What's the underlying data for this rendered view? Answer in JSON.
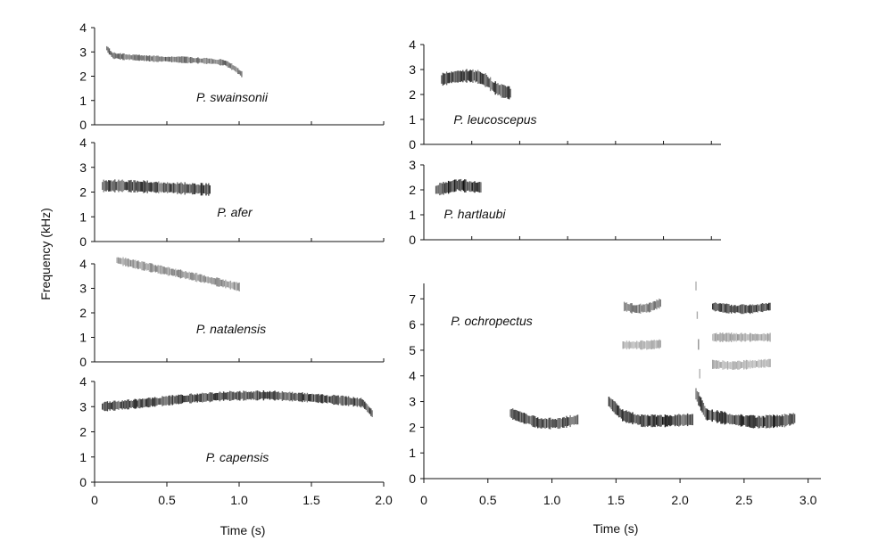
{
  "figure": {
    "ylabel": "Frequency (kHz)",
    "xlabel_left": "Time (s)",
    "xlabel_right": "Time (s)"
  },
  "chart_data": [
    {
      "type": "heatmap",
      "panel": "left-1",
      "species": "P. swainsonii",
      "xlim": [
        0,
        2.0
      ],
      "ylim": [
        0,
        4
      ],
      "yticks": [
        0,
        1,
        2,
        3,
        4
      ],
      "ytick_labels": [
        "0",
        "1",
        "2",
        "3",
        "4"
      ],
      "contour": {
        "x": [
          0.08,
          0.12,
          0.2,
          0.4,
          0.6,
          0.8,
          0.9,
          0.97,
          1.02
        ],
        "y": [
          3.15,
          2.85,
          2.8,
          2.72,
          2.68,
          2.62,
          2.55,
          2.3,
          2.05
        ],
        "band": 0.22,
        "intensity": 0.65
      }
    },
    {
      "type": "heatmap",
      "panel": "left-2",
      "species": "P. afer",
      "xlim": [
        0,
        2.0
      ],
      "ylim": [
        0,
        4
      ],
      "yticks": [
        0,
        1,
        2,
        3,
        4
      ],
      "ytick_labels": [
        "0",
        "1",
        "2",
        "3",
        "4"
      ],
      "contour": {
        "x": [
          0.05,
          0.2,
          0.4,
          0.6,
          0.8
        ],
        "y": [
          2.25,
          2.25,
          2.2,
          2.15,
          2.1
        ],
        "band": 0.42,
        "intensity": 0.85
      }
    },
    {
      "type": "heatmap",
      "panel": "left-3",
      "species": "P. natalensis",
      "xlim": [
        0,
        2.0
      ],
      "ylim": [
        0,
        4
      ],
      "yticks": [
        0,
        1,
        2,
        3,
        4
      ],
      "ytick_labels": [
        "0",
        "1",
        "2",
        "3",
        "4"
      ],
      "contour": {
        "x": [
          0.15,
          0.3,
          0.5,
          0.7,
          0.85,
          1.0
        ],
        "y": [
          4.15,
          3.95,
          3.7,
          3.45,
          3.25,
          3.05
        ],
        "band": 0.3,
        "intensity": 0.5
      }
    },
    {
      "type": "heatmap",
      "panel": "left-4",
      "species": "P. capensis",
      "xlim": [
        0,
        2.0
      ],
      "ylim": [
        0,
        4
      ],
      "xticks": [
        0,
        0.5,
        1.0,
        1.5,
        2.0
      ],
      "xtick_labels": [
        "0",
        "0.5",
        "1.0",
        "1.5",
        "2.0"
      ],
      "yticks": [
        0,
        1,
        2,
        3,
        4
      ],
      "ytick_labels": [
        "0",
        "1",
        "2",
        "3",
        "4"
      ],
      "contour": {
        "x": [
          0.05,
          0.3,
          0.6,
          0.9,
          1.2,
          1.5,
          1.75,
          1.85,
          1.92
        ],
        "y": [
          3.0,
          3.12,
          3.3,
          3.42,
          3.45,
          3.35,
          3.22,
          3.15,
          2.7
        ],
        "band": 0.32,
        "intensity": 0.85
      }
    },
    {
      "type": "heatmap",
      "panel": "right-1",
      "species": "P. leucoscepus",
      "xlim": [
        0,
        3.1
      ],
      "ylim": [
        0,
        4
      ],
      "yticks": [
        0,
        1,
        2,
        3,
        4
      ],
      "ytick_labels": [
        "0",
        "1",
        "2",
        "3",
        "4"
      ],
      "contour": {
        "x": [
          0.18,
          0.3,
          0.45,
          0.55,
          0.65,
          0.72,
          0.8,
          0.9
        ],
        "y": [
          2.6,
          2.7,
          2.75,
          2.72,
          2.55,
          2.3,
          2.15,
          2.05
        ],
        "band": 0.45,
        "intensity": 0.85
      }
    },
    {
      "type": "heatmap",
      "panel": "right-2",
      "species": "P. hartlaubi",
      "xlim": [
        0,
        3.1
      ],
      "ylim": [
        0,
        3
      ],
      "yticks": [
        0,
        1,
        2,
        3
      ],
      "ytick_labels": [
        "0",
        "1",
        "2",
        "3"
      ],
      "contour": {
        "x": [
          0.12,
          0.25,
          0.35,
          0.5,
          0.6
        ],
        "y": [
          2.0,
          2.1,
          2.2,
          2.12,
          2.1
        ],
        "band": 0.42,
        "intensity": 0.95
      }
    },
    {
      "type": "heatmap",
      "panel": "right-3",
      "species": "P. ochropectus",
      "xlim": [
        0,
        3.1
      ],
      "ylim": [
        0,
        7.6
      ],
      "xticks": [
        0,
        0.5,
        1.0,
        1.5,
        2.0,
        2.5,
        3.0
      ],
      "xtick_labels": [
        "0",
        "0.5",
        "1.0",
        "1.5",
        "2.0",
        "2.5",
        "3.0"
      ],
      "yticks": [
        0,
        1,
        2,
        3,
        4,
        5,
        6,
        7
      ],
      "ytick_labels": [
        "0",
        "1",
        "2",
        "3",
        "4",
        "5",
        "6",
        "7"
      ],
      "segments": [
        {
          "x": [
            0.67,
            0.75,
            0.9,
            1.05,
            1.2
          ],
          "y": [
            2.55,
            2.4,
            2.15,
            2.15,
            2.3
          ],
          "band": 0.38,
          "intensity": 0.8
        },
        {
          "x": [
            1.44,
            1.55,
            1.7,
            1.9,
            2.1
          ],
          "y": [
            3.0,
            2.45,
            2.25,
            2.25,
            2.3
          ],
          "band": 0.4,
          "intensity": 0.9
        },
        {
          "x": [
            2.12,
            2.2,
            2.4,
            2.6,
            2.8,
            2.9
          ],
          "y": [
            3.3,
            2.5,
            2.3,
            2.2,
            2.25,
            2.35
          ],
          "band": 0.42,
          "intensity": 0.9
        },
        {
          "x": [
            1.56,
            1.65,
            1.75,
            1.85
          ],
          "y": [
            6.7,
            6.6,
            6.65,
            6.85
          ],
          "band": 0.32,
          "intensity": 0.6
        },
        {
          "x": [
            2.25,
            2.4,
            2.55,
            2.7
          ],
          "y": [
            6.7,
            6.6,
            6.6,
            6.7
          ],
          "band": 0.3,
          "intensity": 0.85
        },
        {
          "x": [
            1.55,
            1.65,
            1.75,
            1.85
          ],
          "y": [
            5.2,
            5.2,
            5.2,
            5.25
          ],
          "band": 0.3,
          "intensity": 0.35
        },
        {
          "x": [
            2.25,
            2.4,
            2.55,
            2.7
          ],
          "y": [
            5.5,
            5.5,
            5.5,
            5.5
          ],
          "band": 0.3,
          "intensity": 0.4
        },
        {
          "x": [
            2.25,
            2.4,
            2.55,
            2.7
          ],
          "y": [
            4.45,
            4.4,
            4.45,
            4.5
          ],
          "band": 0.3,
          "intensity": 0.35
        },
        {
          "x": [
            2.12,
            2.15
          ],
          "y": [
            7.5,
            4.0
          ],
          "band": 0.35,
          "intensity": 0.45
        }
      ]
    }
  ]
}
